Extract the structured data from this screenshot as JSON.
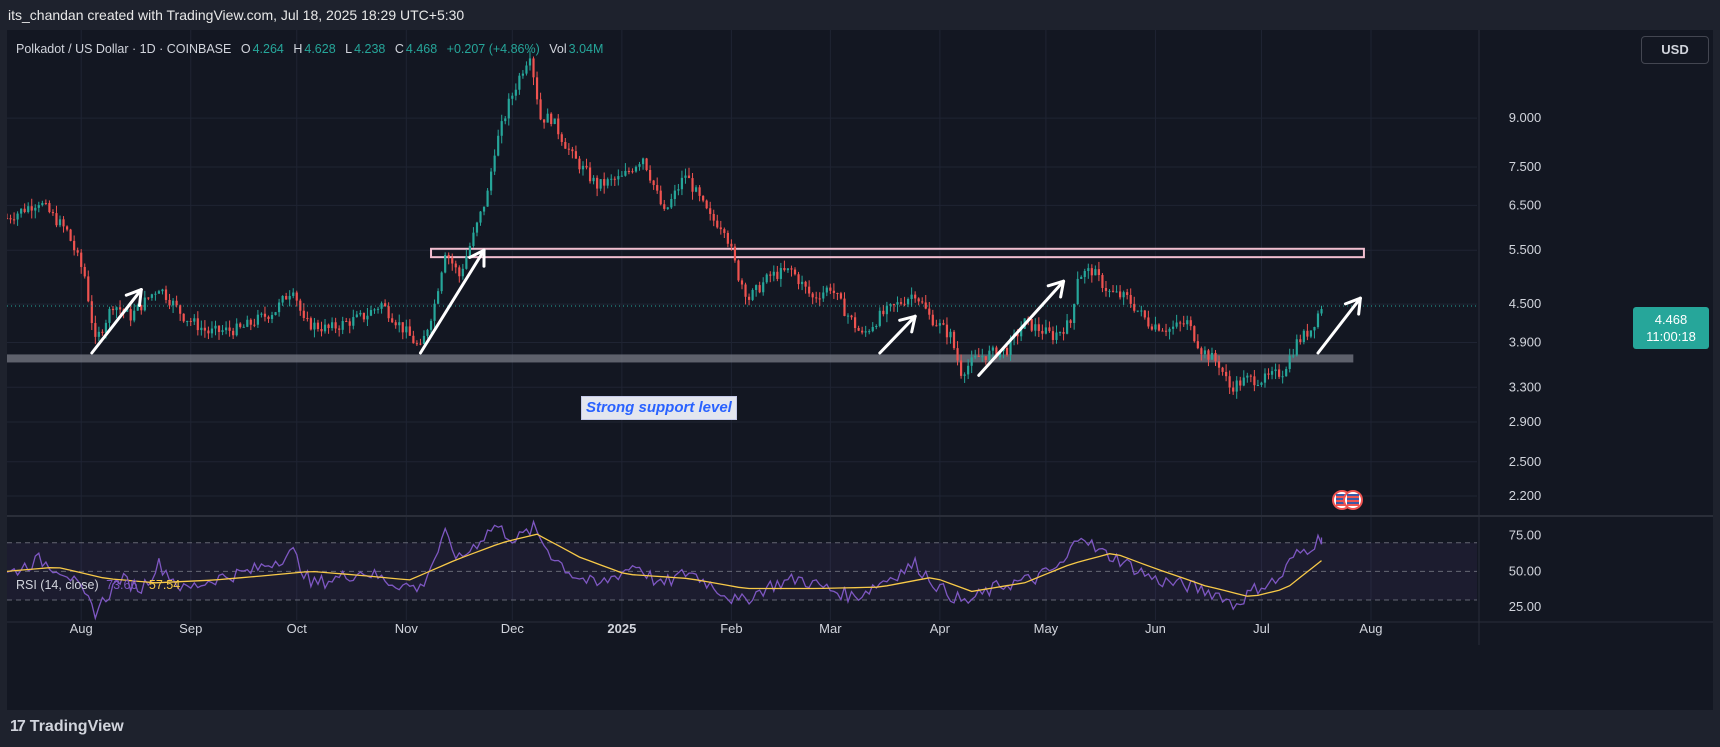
{
  "header": {
    "attribution": "its_chandan created with TradingView.com, Jul 18, 2025 18:29 UTC+5:30"
  },
  "legend": {
    "symbol": "Polkadot / US Dollar · 1D · COINBASE",
    "open_label": "O",
    "open": "4.264",
    "high_label": "H",
    "high": "4.628",
    "low_label": "L",
    "low": "4.238",
    "close_label": "C",
    "close": "4.468",
    "change": "+0.207 (+4.86%)",
    "vol_label": "Vol",
    "vol": "3.04M"
  },
  "currency": "USD",
  "price_tag": {
    "price": "4.468",
    "countdown": "11:00:18"
  },
  "annotation": {
    "support_label": "Strong support level"
  },
  "rsi_legend": {
    "name": "RSI (14, close)",
    "rsi_value": "73.66",
    "ma_value": "57.54"
  },
  "footer": {
    "logo_text": "TradingView"
  },
  "colors": {
    "background": "#131722",
    "up": "#26a69a",
    "down": "#ef5350",
    "rsi": "#7e57c2",
    "rsi_ma": "#f7c948",
    "support_band": "#787b86",
    "resistance_box": "#f2bfd0",
    "arrow": "#ffffff"
  },
  "icons": [
    "tradingview-logo-icon",
    "us-flag-icon",
    "arrow-up-right-icon"
  ],
  "chart_data": [
    {
      "type": "candlestick",
      "title": "Polkadot / US Dollar · 1D · COINBASE",
      "scale": "log",
      "y_ticks": [
        "9.000",
        "7.500",
        "6.500",
        "5.500",
        "4.500",
        "3.900",
        "3.300",
        "2.900",
        "2.500",
        "2.200"
      ],
      "y_tick_values": [
        9.0,
        7.5,
        6.5,
        5.5,
        4.5,
        3.9,
        3.3,
        2.9,
        2.5,
        2.2
      ],
      "ylim": [
        2.05,
        12.5
      ],
      "x_labels": [
        "Aug",
        "Sep",
        "Oct",
        "Nov",
        "Dec",
        "2025",
        "Feb",
        "Mar",
        "Apr",
        "May",
        "Jun",
        "Jul",
        "Aug"
      ],
      "x_label_dates": [
        "2024-08-01",
        "2024-09-01",
        "2024-10-01",
        "2024-11-01",
        "2024-12-01",
        "2025-01-01",
        "2025-02-01",
        "2025-03-01",
        "2025-04-01",
        "2025-05-01",
        "2025-06-01",
        "2025-07-01",
        "2025-08-01"
      ],
      "date_range": [
        "2024-07-11",
        "2025-08-31"
      ],
      "series": [
        {
          "kind": "close_path",
          "points": [
            [
              "2024-07-11",
              6.2
            ],
            [
              "2024-07-20",
              6.6
            ],
            [
              "2024-07-28",
              5.9
            ],
            [
              "2024-08-02",
              5.0
            ],
            [
              "2024-08-05",
              3.9
            ],
            [
              "2024-08-10",
              4.5
            ],
            [
              "2024-08-15",
              4.3
            ],
            [
              "2024-08-23",
              4.8
            ],
            [
              "2024-08-30",
              4.3
            ],
            [
              "2024-09-06",
              4.05
            ],
            [
              "2024-09-15",
              4.1
            ],
            [
              "2024-09-25",
              4.4
            ],
            [
              "2024-09-30",
              4.8
            ],
            [
              "2024-10-03",
              4.2
            ],
            [
              "2024-10-10",
              4.1
            ],
            [
              "2024-10-20",
              4.3
            ],
            [
              "2024-10-25",
              4.5
            ],
            [
              "2024-11-01",
              4.05
            ],
            [
              "2024-11-05",
              3.8
            ],
            [
              "2024-11-09",
              4.5
            ],
            [
              "2024-11-12",
              5.5
            ],
            [
              "2024-11-16",
              5.0
            ],
            [
              "2024-11-20",
              5.8
            ],
            [
              "2024-11-24",
              6.8
            ],
            [
              "2024-11-26",
              8.0
            ],
            [
              "2024-11-30",
              9.5
            ],
            [
              "2024-12-03",
              10.5
            ],
            [
              "2024-12-06",
              11.5
            ],
            [
              "2024-12-09",
              9.0
            ],
            [
              "2024-12-12",
              9.0
            ],
            [
              "2024-12-18",
              7.8
            ],
            [
              "2024-12-25",
              7.0
            ],
            [
              "2025-01-01",
              7.2
            ],
            [
              "2025-01-07",
              7.8
            ],
            [
              "2025-01-13",
              6.3
            ],
            [
              "2025-01-19",
              7.3
            ],
            [
              "2025-01-26",
              6.2
            ],
            [
              "2025-01-30",
              6.0
            ],
            [
              "2025-02-03",
              5.0
            ],
            [
              "2025-02-06",
              4.6
            ],
            [
              "2025-02-12",
              5.0
            ],
            [
              "2025-02-18",
              5.1
            ],
            [
              "2025-02-24",
              4.6
            ],
            [
              "2025-03-01",
              4.8
            ],
            [
              "2025-03-05",
              4.4
            ],
            [
              "2025-03-10",
              4.0
            ],
            [
              "2025-03-15",
              4.3
            ],
            [
              "2025-03-25",
              4.7
            ],
            [
              "2025-03-29",
              4.3
            ],
            [
              "2025-04-04",
              4.0
            ],
            [
              "2025-04-07",
              3.5
            ],
            [
              "2025-04-12",
              3.7
            ],
            [
              "2025-04-20",
              3.8
            ],
            [
              "2025-04-25",
              4.2
            ],
            [
              "2025-05-03",
              4.0
            ],
            [
              "2025-05-08",
              4.2
            ],
            [
              "2025-05-10",
              5.0
            ],
            [
              "2025-05-14",
              5.1
            ],
            [
              "2025-05-19",
              4.7
            ],
            [
              "2025-05-24",
              4.6
            ],
            [
              "2025-05-30",
              4.2
            ],
            [
              "2025-06-05",
              4.1
            ],
            [
              "2025-06-10",
              4.2
            ],
            [
              "2025-06-14",
              3.8
            ],
            [
              "2025-06-19",
              3.6
            ],
            [
              "2025-06-22",
              3.3
            ],
            [
              "2025-06-27",
              3.4
            ],
            [
              "2025-07-02",
              3.4
            ],
            [
              "2025-07-07",
              3.5
            ],
            [
              "2025-07-11",
              3.9
            ],
            [
              "2025-07-15",
              4.1
            ],
            [
              "2025-07-18",
              4.468
            ]
          ]
        }
      ],
      "support_band": [
        3.62,
        3.73
      ],
      "support_band_dates": [
        "2024-07-11",
        "2025-07-27"
      ],
      "resistance_box": [
        5.36,
        5.53
      ],
      "resistance_box_dates": [
        "2024-11-08",
        "2025-07-30"
      ],
      "arrows": [
        {
          "from": [
            "2024-08-04",
            3.75
          ],
          "to": [
            "2024-08-18",
            4.75
          ]
        },
        {
          "from": [
            "2024-11-05",
            3.75
          ],
          "to": [
            "2024-11-23",
            5.5
          ]
        },
        {
          "from": [
            "2025-03-15",
            3.75
          ],
          "to": [
            "2025-03-25",
            4.3
          ]
        },
        {
          "from": [
            "2025-04-12",
            3.45
          ],
          "to": [
            "2025-05-06",
            4.9
          ]
        },
        {
          "from": [
            "2025-07-17",
            3.75
          ],
          "to": [
            "2025-07-29",
            4.6
          ]
        }
      ]
    },
    {
      "type": "line",
      "title": "RSI (14, close)",
      "y_ticks": [
        "75.00",
        "50.00",
        "25.00"
      ],
      "y_tick_values": [
        75,
        50,
        25
      ],
      "band": [
        30,
        70
      ],
      "ylim": [
        16,
        88
      ],
      "date_range": [
        "2024-07-11",
        "2025-08-31"
      ],
      "series": [
        {
          "name": "RSI",
          "points": [
            [
              "2024-07-11",
              48
            ],
            [
              "2024-07-20",
              58
            ],
            [
              "2024-07-28",
              49
            ],
            [
              "2024-08-05",
              22
            ],
            [
              "2024-08-12",
              45
            ],
            [
              "2024-08-18",
              38
            ],
            [
              "2024-08-23",
              55
            ],
            [
              "2024-08-30",
              37
            ],
            [
              "2024-09-08",
              45
            ],
            [
              "2024-09-18",
              50
            ],
            [
              "2024-09-30",
              63
            ],
            [
              "2024-10-05",
              41
            ],
            [
              "2024-10-12",
              45
            ],
            [
              "2024-10-20",
              50
            ],
            [
              "2024-10-28",
              42
            ],
            [
              "2024-11-05",
              38
            ],
            [
              "2024-11-12",
              75
            ],
            [
              "2024-11-16",
              58
            ],
            [
              "2024-11-26",
              82
            ],
            [
              "2024-12-02",
              72
            ],
            [
              "2024-12-07",
              80
            ],
            [
              "2024-12-12",
              62
            ],
            [
              "2024-12-18",
              48
            ],
            [
              "2024-12-25",
              40
            ],
            [
              "2025-01-05",
              55
            ],
            [
              "2025-01-12",
              40
            ],
            [
              "2025-01-20",
              50
            ],
            [
              "2025-01-28",
              38
            ],
            [
              "2025-02-03",
              28
            ],
            [
              "2025-02-12",
              40
            ],
            [
              "2025-02-20",
              45
            ],
            [
              "2025-02-28",
              38
            ],
            [
              "2025-03-08",
              32
            ],
            [
              "2025-03-15",
              42
            ],
            [
              "2025-03-25",
              55
            ],
            [
              "2025-04-01",
              38
            ],
            [
              "2025-04-08",
              28
            ],
            [
              "2025-04-18",
              40
            ],
            [
              "2025-04-28",
              45
            ],
            [
              "2025-05-06",
              55
            ],
            [
              "2025-05-11",
              78
            ],
            [
              "2025-05-15",
              65
            ],
            [
              "2025-05-22",
              58
            ],
            [
              "2025-06-01",
              44
            ],
            [
              "2025-06-10",
              40
            ],
            [
              "2025-06-20",
              33
            ],
            [
              "2025-06-23",
              26
            ],
            [
              "2025-06-30",
              39
            ],
            [
              "2025-07-06",
              44
            ],
            [
              "2025-07-10",
              60
            ],
            [
              "2025-07-14",
              66
            ],
            [
              "2025-07-18",
              73.66
            ]
          ]
        },
        {
          "name": "MA",
          "points": [
            [
              "2024-07-11",
              50
            ],
            [
              "2024-07-25",
              53
            ],
            [
              "2024-08-08",
              45
            ],
            [
              "2024-08-22",
              42
            ],
            [
              "2024-09-08",
              44
            ],
            [
              "2024-09-22",
              47
            ],
            [
              "2024-10-05",
              50
            ],
            [
              "2024-10-20",
              47
            ],
            [
              "2024-11-02",
              44
            ],
            [
              "2024-11-15",
              58
            ],
            [
              "2024-11-28",
              70
            ],
            [
              "2024-12-08",
              76
            ],
            [
              "2024-12-20",
              60
            ],
            [
              "2025-01-02",
              48
            ],
            [
              "2025-01-20",
              45
            ],
            [
              "2025-02-05",
              38
            ],
            [
              "2025-02-25",
              38
            ],
            [
              "2025-03-15",
              39
            ],
            [
              "2025-03-30",
              46
            ],
            [
              "2025-04-10",
              36
            ],
            [
              "2025-04-25",
              42
            ],
            [
              "2025-05-08",
              55
            ],
            [
              "2025-05-20",
              63
            ],
            [
              "2025-06-01",
              52
            ],
            [
              "2025-06-15",
              40
            ],
            [
              "2025-06-28",
              32
            ],
            [
              "2025-07-08",
              38
            ],
            [
              "2025-07-18",
              57.54
            ]
          ]
        }
      ]
    }
  ]
}
